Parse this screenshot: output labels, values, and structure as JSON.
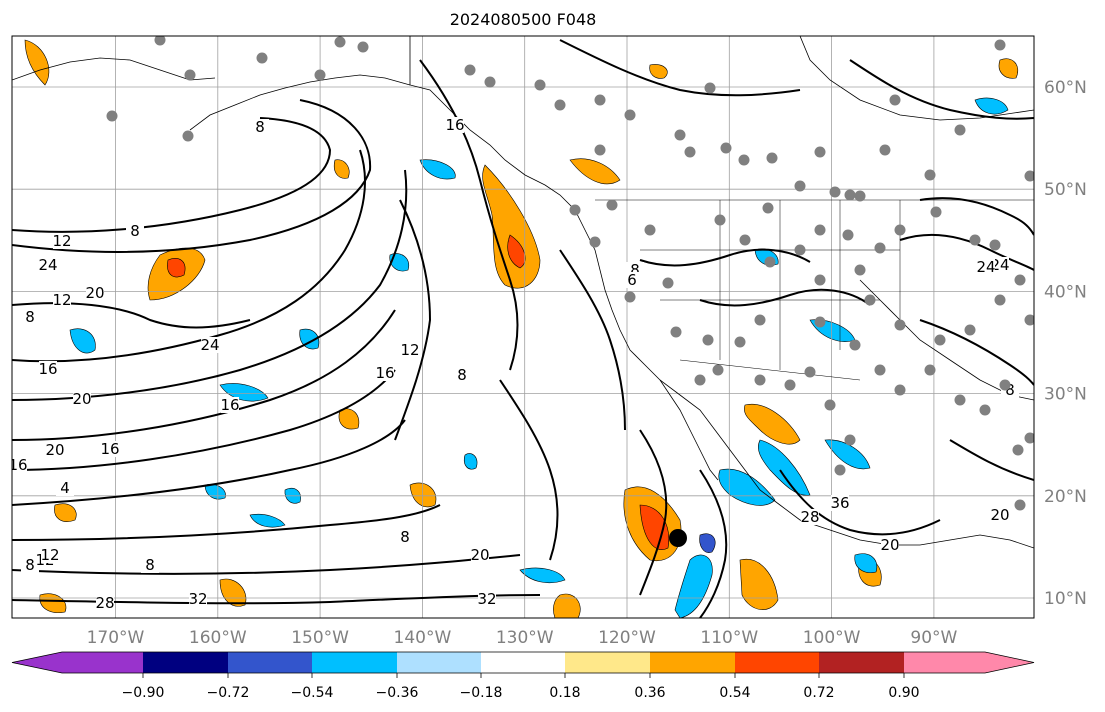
{
  "title": "2024080500 F048",
  "map": {
    "projection": "lat-lon",
    "longitude_labels": [
      "170°W",
      "160°W",
      "150°W",
      "140°W",
      "130°W",
      "120°W",
      "110°W",
      "100°W",
      "90°W"
    ],
    "latitude_labels": [
      "60°N",
      "50°N",
      "40°N",
      "30°N",
      "20°N",
      "10°N"
    ],
    "gridlines": true,
    "contour_labels": [
      "8",
      "12",
      "24",
      "20",
      "12",
      "8",
      "16",
      "24",
      "20",
      "16",
      "20",
      "16",
      "4",
      "8",
      "12",
      "8",
      "28",
      "32",
      "32",
      "20",
      "8",
      "16",
      "8",
      "12",
      "16",
      "16",
      "8",
      "8",
      "28",
      "36",
      "20",
      "24",
      "8",
      "6",
      "24",
      "20",
      "12"
    ],
    "station_marker_color": "#808080",
    "storm_center_marker": "black-dot",
    "storm_center_position": "near 15.5°N 114.5°W"
  },
  "colorbar": {
    "tick_labels": [
      "−0.90",
      "−0.72",
      "−0.54",
      "−0.36",
      "−0.18",
      "0.18",
      "0.36",
      "0.54",
      "0.72",
      "0.90"
    ],
    "colors": [
      "#9933cc",
      "#000080",
      "#3355cc",
      "#00bfff",
      "#aee0ff",
      "#ffffff",
      "#ffe88a",
      "#ffa500",
      "#ff4500",
      "#b22222",
      "#ff88aa"
    ],
    "extend": "both"
  },
  "fill_colors": {
    "neg_light": "#aee0ff",
    "neg_mid": "#00bfff",
    "neg_strong": "#3355cc",
    "pos_light": "#ffe88a",
    "pos_mid": "#ffa500",
    "pos_strong": "#ff4500"
  }
}
